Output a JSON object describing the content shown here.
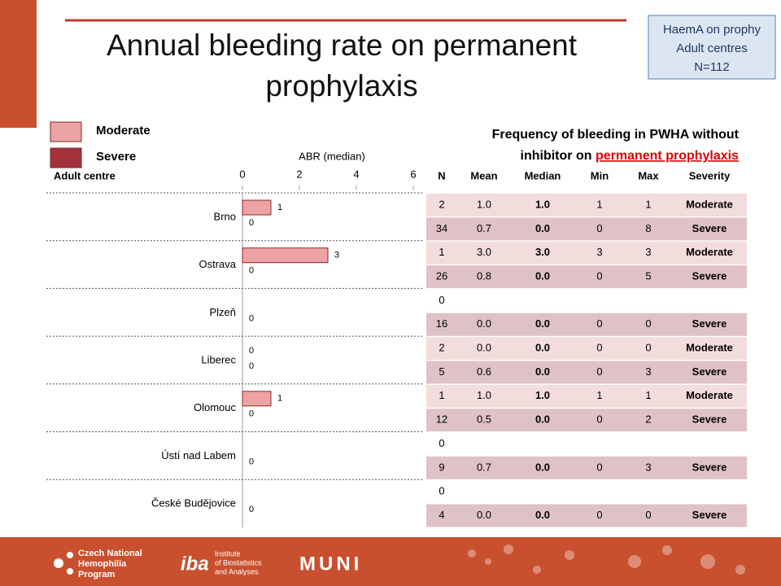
{
  "title": "Annual bleeding rate on permanent prophylaxis",
  "badge": [
    "HaemA on prophy",
    "Adult centres",
    "N=112"
  ],
  "chart_data": {
    "type": "hbar",
    "x_label": "ABR (median)",
    "category_label": "Adult centre",
    "categories": [
      "Brno",
      "Ostrava",
      "Plzeň",
      "Liberec",
      "Olomouc",
      "Ústí nad Labem",
      "České Budějovice"
    ],
    "series": [
      {
        "name": "Moderate",
        "color": "#eba3a3",
        "values": [
          1,
          3,
          null,
          0,
          1,
          null,
          null
        ]
      },
      {
        "name": "Severe",
        "color": "#a3323c",
        "values": [
          0,
          0,
          0,
          0,
          0,
          0,
          0
        ]
      }
    ],
    "xlim": [
      0,
      6
    ],
    "xticks": [
      0,
      2,
      4,
      6
    ]
  },
  "table": {
    "title": "Frequency of bleeding in PWHA without",
    "title_line2": "inhibitor on",
    "title_highlight": "permanent prophylaxis",
    "columns": [
      "N",
      "Mean",
      "Median",
      "Min",
      "Max",
      "Severity"
    ],
    "rows": [
      [
        "2",
        "1.0",
        "1.0",
        "1",
        "1",
        "Moderate"
      ],
      [
        "34",
        "0.7",
        "0.0",
        "0",
        "8",
        "Severe"
      ],
      [
        "1",
        "3.0",
        "3.0",
        "3",
        "3",
        "Moderate"
      ],
      [
        "26",
        "0.8",
        "0.0",
        "0",
        "5",
        "Severe"
      ],
      [
        "0"
      ],
      [
        "16",
        "0.0",
        "0.0",
        "0",
        "0",
        "Severe"
      ],
      [
        "2",
        "0.0",
        "0.0",
        "0",
        "0",
        "Moderate"
      ],
      [
        "5",
        "0.6",
        "0.0",
        "0",
        "3",
        "Severe"
      ],
      [
        "1",
        "1.0",
        "1.0",
        "1",
        "1",
        "Moderate"
      ],
      [
        "12",
        "0.5",
        "0.0",
        "0",
        "2",
        "Severe"
      ],
      [
        "0"
      ],
      [
        "9",
        "0.7",
        "0.0",
        "0",
        "3",
        "Severe"
      ],
      [
        "0"
      ],
      [
        "4",
        "0.0",
        "0.0",
        "0",
        "0",
        "Severe"
      ]
    ]
  },
  "footer": {
    "logo1": [
      "Czech National",
      "Hemophilia",
      "Program"
    ],
    "logo2": "iba",
    "logo2_text": [
      "Institute",
      "of Biostatistics",
      "and Analyses"
    ],
    "logo3": "MUNI"
  }
}
